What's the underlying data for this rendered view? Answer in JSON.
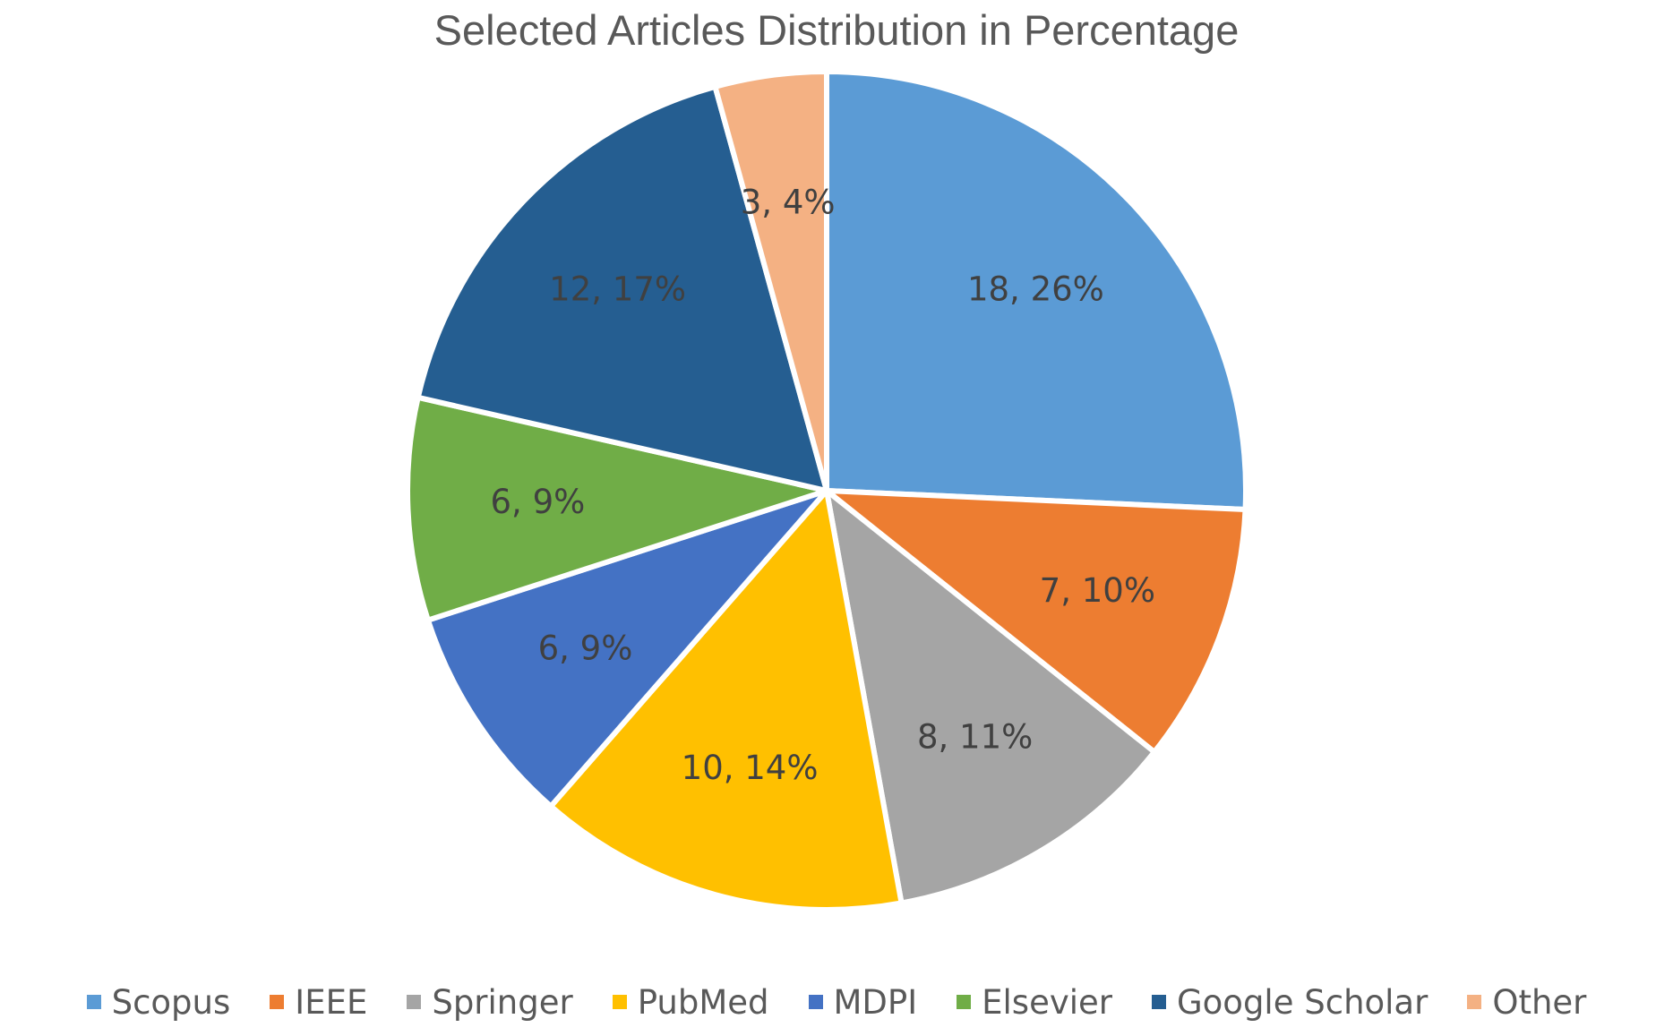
{
  "chart_data": {
    "type": "pie",
    "title": "Selected Articles Distribution in Percentage",
    "start_angle_deg": 0,
    "direction": "clockwise",
    "legend_position": "bottom",
    "slices": [
      {
        "name": "Scopus",
        "value": 18,
        "label": "18, 26%",
        "color": "#5B9BD5"
      },
      {
        "name": "IEEE",
        "value": 7,
        "label": "7, 10%",
        "color": "#ED7D31"
      },
      {
        "name": "Springer",
        "value": 8,
        "label": "8, 11%",
        "color": "#A5A5A5"
      },
      {
        "name": "PubMed",
        "value": 10,
        "label": "10, 14%",
        "color": "#FFC000"
      },
      {
        "name": "MDPI",
        "value": 6,
        "label": "6, 9%",
        "color": "#4472C4"
      },
      {
        "name": "Elsevier",
        "value": 6,
        "label": "6, 9%",
        "color": "#70AD47"
      },
      {
        "name": "Google Scholar",
        "value": 12,
        "label": "12, 17%",
        "color": "#255E91"
      },
      {
        "name": "Other",
        "value": 3,
        "label": "3, 4%",
        "color": "#F4B183"
      }
    ]
  }
}
